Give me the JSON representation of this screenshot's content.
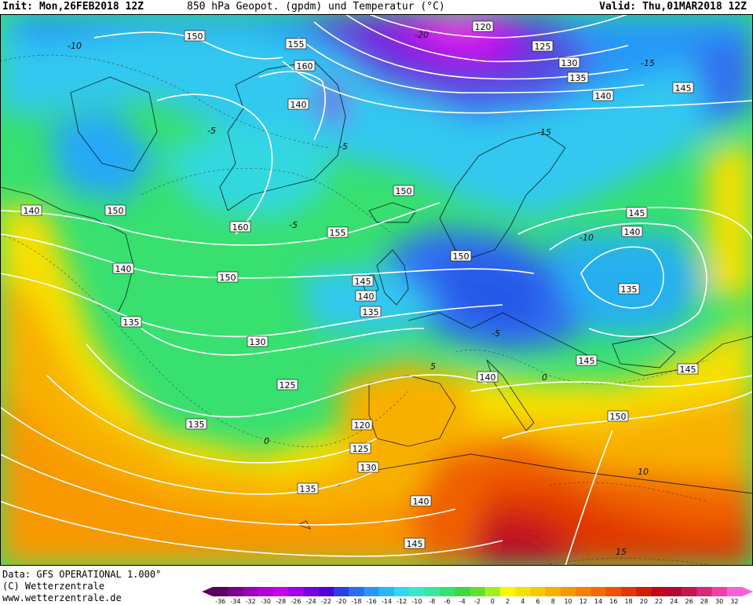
{
  "header": {
    "init": "Init: Mon,26FEB2018 12Z",
    "title": "850 hPa Geopot. (gpdm) und Temperatur (°C)",
    "valid": "Valid: Thu,01MAR2018 12Z"
  },
  "footer": {
    "data_source": "Data: GFS OPERATIONAL 1.000°",
    "copyright": "(C) Wetterzentrale",
    "url": "www.wetterzentrale.de"
  },
  "colorbar": {
    "ticks": [
      "-36",
      "-34",
      "-32",
      "-30",
      "-28",
      "-26",
      "-24",
      "-22",
      "-20",
      "-18",
      "-16",
      "-14",
      "-12",
      "-10",
      "-8",
      "-6",
      "-4",
      "-2",
      "0",
      "2",
      "4",
      "6",
      "8",
      "10",
      "12",
      "14",
      "16",
      "18",
      "20",
      "22",
      "24",
      "26",
      "28",
      "30",
      "32"
    ],
    "colors": [
      "#5a0060",
      "#7a0090",
      "#9a00b8",
      "#b400d8",
      "#c800f0",
      "#a000e8",
      "#7800e0",
      "#5000d8",
      "#2840e0",
      "#2870f0",
      "#2898f8",
      "#28b8f8",
      "#30d8f0",
      "#38e8c8",
      "#38e8a0",
      "#38e070",
      "#40d840",
      "#60e030",
      "#a0f020",
      "#f8f800",
      "#f8e000",
      "#f8c800",
      "#f8b000",
      "#f89800",
      "#f88000",
      "#f86800",
      "#f05000",
      "#e03800",
      "#d02000",
      "#c00818",
      "#b00830",
      "#c01850",
      "#d82878",
      "#f040a8",
      "#f860d8"
    ]
  },
  "map": {
    "geopotential_labels": [
      {
        "text": "150"
      },
      {
        "text": "155"
      },
      {
        "text": "160"
      },
      {
        "text": "120"
      },
      {
        "text": "125"
      },
      {
        "text": "130"
      },
      {
        "text": "135"
      },
      {
        "text": "140"
      },
      {
        "text": "145"
      },
      {
        "text": "150"
      },
      {
        "text": "160"
      },
      {
        "text": "150"
      },
      {
        "text": "155"
      },
      {
        "text": "145"
      },
      {
        "text": "140"
      },
      {
        "text": "135"
      },
      {
        "text": "130"
      },
      {
        "text": "125"
      },
      {
        "text": "120"
      },
      {
        "text": "125"
      },
      {
        "text": "130"
      },
      {
        "text": "135"
      },
      {
        "text": "140"
      },
      {
        "text": "145"
      },
      {
        "text": "150"
      },
      {
        "text": "140"
      },
      {
        "text": "140"
      },
      {
        "text": "135"
      },
      {
        "text": "145"
      },
      {
        "text": "140"
      },
      {
        "text": "145"
      },
      {
        "text": "150"
      },
      {
        "text": "145"
      },
      {
        "text": "140"
      },
      {
        "text": "135"
      },
      {
        "text": "140"
      },
      {
        "text": "135"
      },
      {
        "text": "150"
      }
    ],
    "temperature_labels": [
      {
        "text": "-10"
      },
      {
        "text": "-5"
      },
      {
        "text": "-5"
      },
      {
        "text": "-5"
      },
      {
        "text": "0"
      },
      {
        "text": "-15"
      },
      {
        "text": "-20"
      },
      {
        "text": "-15"
      },
      {
        "text": "-10"
      },
      {
        "text": "-5"
      },
      {
        "text": "0"
      },
      {
        "text": "5"
      },
      {
        "text": "10"
      },
      {
        "text": "15"
      }
    ]
  }
}
